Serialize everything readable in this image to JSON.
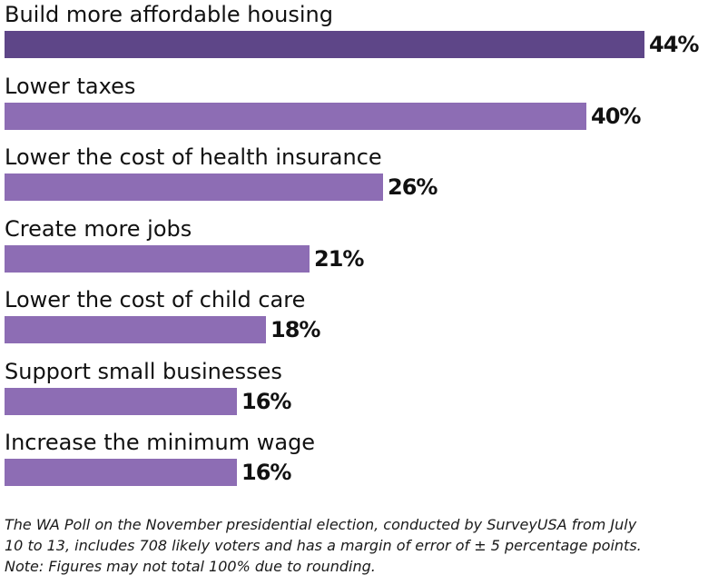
{
  "chart_data": {
    "type": "bar",
    "orientation": "horizontal",
    "categories": [
      "Build more affordable housing",
      "Lower taxes",
      "Lower the cost of health insurance",
      "Create more jobs",
      "Lower the cost of child care",
      "Support small businesses",
      "Increase the minimum wage"
    ],
    "values": [
      44,
      40,
      26,
      21,
      18,
      16,
      16
    ],
    "value_labels": [
      "44%",
      "40%",
      "26%",
      "21%",
      "18%",
      "16%",
      "16%"
    ],
    "xlim": [
      0,
      44
    ],
    "highlight_color": "#5e4688",
    "bar_color": "#8d6db4",
    "grid": false
  },
  "notes": {
    "line1": "The WA Poll on the November presidential election, conducted by SurveyUSA from July",
    "line2": "10 to 13, includes 708 likely voters and has a margin of error of ± 5 percentage points.",
    "line3": "Note: Figures may not total 100% due to rounding."
  }
}
